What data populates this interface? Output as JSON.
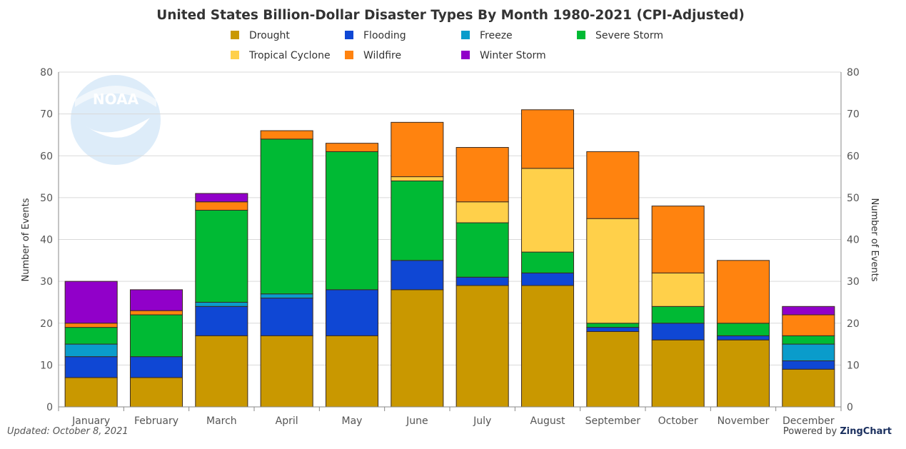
{
  "chart_data": {
    "type": "bar",
    "stacked": true,
    "title": "United States Billion-Dollar Disaster Types By Month 1980-2021 (CPI-Adjusted)",
    "ylabel": "Number of Events",
    "y2label": "Number of Events",
    "ylim": [
      0,
      80
    ],
    "yticks": [
      0,
      10,
      20,
      30,
      40,
      50,
      60,
      70,
      80
    ],
    "grid": true,
    "legend_position": "top",
    "categories": [
      "January",
      "February",
      "March",
      "April",
      "May",
      "June",
      "July",
      "August",
      "September",
      "October",
      "November",
      "December"
    ],
    "series": [
      {
        "name": "Drought",
        "color": "#C99800",
        "values": [
          7,
          7,
          17,
          17,
          17,
          28,
          29,
          29,
          18,
          16,
          16,
          9
        ]
      },
      {
        "name": "Flooding",
        "color": "#0F47D4",
        "values": [
          5,
          5,
          7,
          9,
          11,
          7,
          2,
          3,
          1,
          4,
          1,
          2
        ]
      },
      {
        "name": "Freeze",
        "color": "#0A9CCB",
        "values": [
          3,
          0,
          1,
          1,
          0,
          0,
          0,
          0,
          0,
          0,
          0,
          4
        ]
      },
      {
        "name": "Severe Storm",
        "color": "#00BA34",
        "values": [
          4,
          10,
          22,
          37,
          33,
          19,
          13,
          5,
          1,
          4,
          3,
          2
        ]
      },
      {
        "name": "Tropical Cyclone",
        "color": "#FFD04A",
        "values": [
          0,
          0,
          0,
          0,
          0,
          1,
          5,
          20,
          25,
          8,
          0,
          0
        ]
      },
      {
        "name": "Wildfire",
        "color": "#FF830F",
        "values": [
          1,
          1,
          2,
          2,
          2,
          13,
          13,
          14,
          16,
          16,
          15,
          5
        ]
      },
      {
        "name": "Winter Storm",
        "color": "#9100C9",
        "values": [
          10,
          5,
          2,
          0,
          0,
          0,
          0,
          0,
          0,
          0,
          0,
          2
        ]
      }
    ]
  },
  "watermark": {
    "text": "NOAA"
  },
  "footer": {
    "updated": "Updated: October 8, 2021",
    "powered_prefix": "Powered by",
    "powered_brand": "ZingChart"
  }
}
